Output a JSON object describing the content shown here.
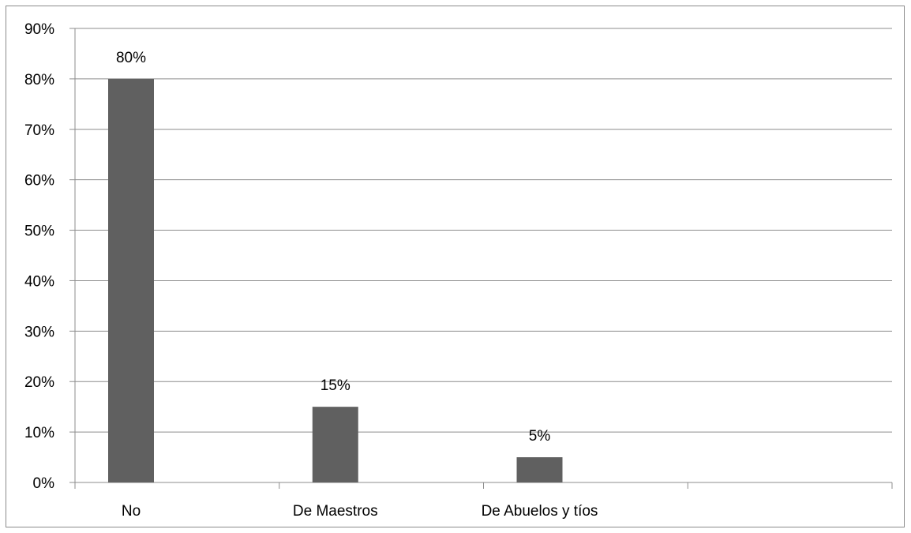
{
  "chart_data": {
    "type": "bar",
    "categories": [
      "No",
      "De Maestros",
      "De Abuelos y tíos",
      ""
    ],
    "values": [
      80,
      15,
      5,
      null
    ],
    "data_labels": [
      "80%",
      "15%",
      "5%",
      ""
    ],
    "ylim": [
      0,
      90
    ],
    "yticks": [
      0,
      10,
      20,
      30,
      40,
      50,
      60,
      70,
      80,
      90
    ],
    "ytick_labels": [
      "0%",
      "10%",
      "20%",
      "30%",
      "40%",
      "50%",
      "60%",
      "70%",
      "80%",
      "90%"
    ],
    "grid": true,
    "legend": "none",
    "bar_color": "#606060",
    "grid_color": "#8c8c8c"
  }
}
